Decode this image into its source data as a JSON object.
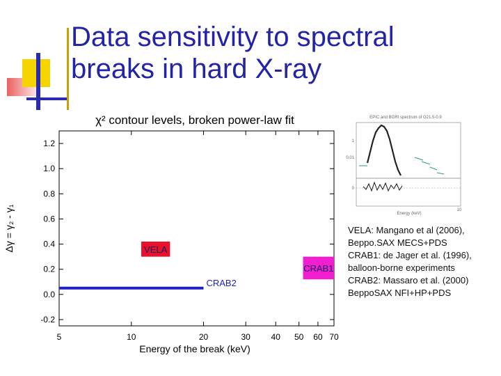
{
  "slide": {
    "title_line1": "Data sensitivity to spectral",
    "title_line2": "breaks in hard X-ray",
    "caption": [
      "VELA: Mangano et al (2006),",
      "Beppo.SAX MECS+PDS",
      "CRAB1: de Jager et al. (1996),",
      "balloon-borne experiments",
      "CRAB2: Massaro et al. (2000)",
      "BeppoSAX NFI+HP+PDS"
    ],
    "colors": {
      "title": "#2323a8",
      "vela_box": "#e8102a",
      "crab1_box": "#f21fd0",
      "crab2": "#2020c0"
    }
  },
  "chart_data": [
    {
      "type": "line",
      "title": "χ² contour levels, broken power-law fit",
      "xlabel": "Energy of the break (keV)",
      "ylabel": "Δγ = γ₂ - γ₁",
      "x_scale": "log",
      "xlim": [
        5,
        70
      ],
      "ylim": [
        -0.25,
        1.3
      ],
      "x_ticks": [
        "5",
        "10",
        "20",
        "30",
        "40",
        "50",
        "60",
        "70"
      ],
      "x_tick_values": [
        5,
        10,
        20,
        30,
        40,
        50,
        60,
        70
      ],
      "y_ticks": [
        "-0.2",
        "0.0",
        "0.2",
        "0.4",
        "0.6",
        "0.8",
        "1.0",
        "1.2"
      ],
      "y_tick_values": [
        -0.2,
        0.0,
        0.2,
        0.4,
        0.6,
        0.8,
        1.0,
        1.2
      ],
      "series": [
        {
          "name": "CRAB2",
          "x": [
            5,
            20
          ],
          "y": [
            0.05,
            0.05
          ],
          "color": "#2020c0"
        }
      ],
      "regions": [
        {
          "name": "VELA",
          "x": [
            11,
            14.5
          ],
          "y": [
            0.3,
            0.42
          ],
          "color": "#e8102a"
        },
        {
          "name": "CRAB1",
          "x": [
            52,
            72
          ],
          "y": [
            0.12,
            0.3
          ],
          "color": "#f21fd0"
        }
      ],
      "grid": false
    }
  ],
  "inset": {
    "title": "EPIC and BGRI spectrum of G21.5-0.9",
    "xlabel": "Energy (keV)",
    "tick_top": "0.01",
    "tick_upper": "1",
    "tick_lower": "0",
    "tick_x": "10"
  }
}
